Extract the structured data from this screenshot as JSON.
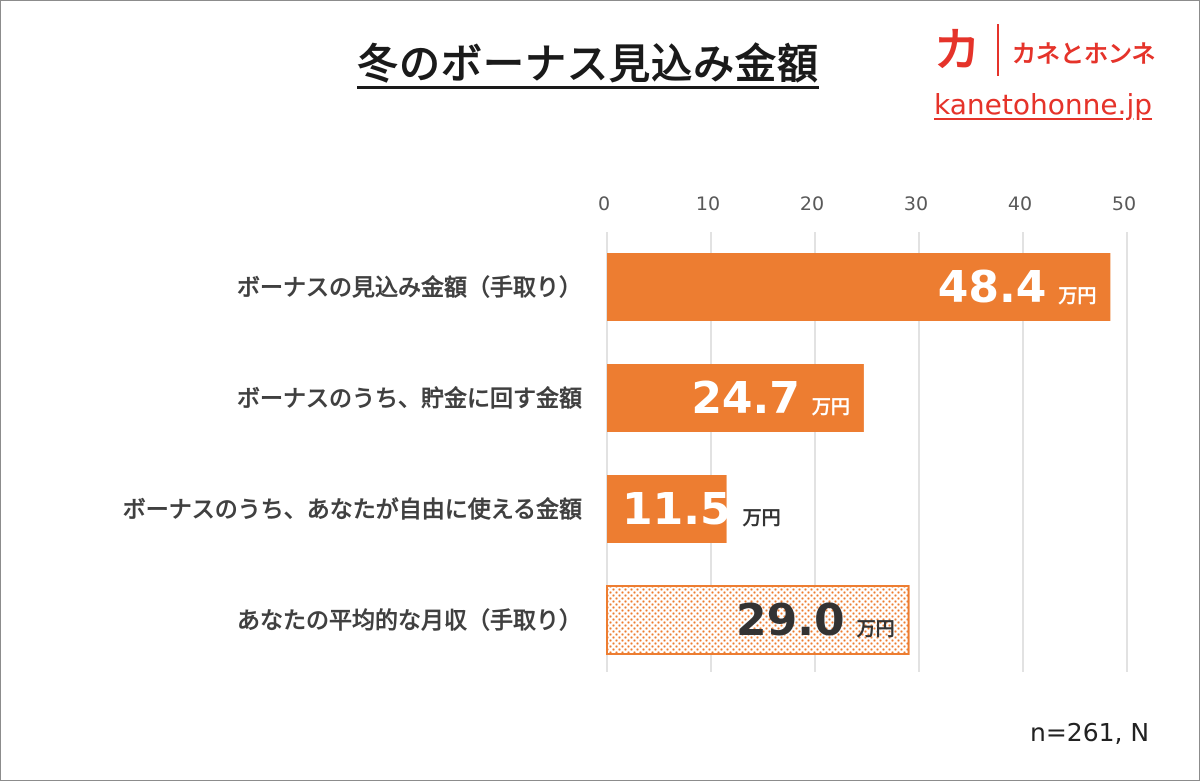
{
  "header": {
    "title": "冬のボーナス見込み金額",
    "brand_mark": "カ",
    "brand_name": "カネとホンネ",
    "brand_url": "kanetohonne.jp"
  },
  "footer": {
    "note": "n=261, N"
  },
  "colors": {
    "bar": "#ed7d31",
    "bar_label_light": "#ffffff",
    "bar_label_dark": "#333333",
    "text": "#404040",
    "grid": "#d9d9d9",
    "brand": "#e5332a"
  },
  "chart_data": {
    "type": "bar",
    "orientation": "horizontal",
    "title": "冬のボーナス見込み金額",
    "xlim": [
      0,
      50
    ],
    "xticks": [
      "0",
      "10",
      "20",
      "30",
      "40",
      "50"
    ],
    "grid": true,
    "unit": "万円",
    "categories": [
      "ボーナスの見込み金額（手取り）",
      "ボーナスのうち、貯金に回す金額",
      "ボーナスのうち、あなたが自由に使える金額",
      "あなたの平均的な月収（手取り）"
    ],
    "values": [
      48.4,
      24.7,
      11.5,
      29.0
    ],
    "value_labels": [
      "48.4",
      "24.7",
      "11.5",
      "29.0"
    ],
    "styles": [
      "solid",
      "solid",
      "solid",
      "dotted"
    ]
  }
}
